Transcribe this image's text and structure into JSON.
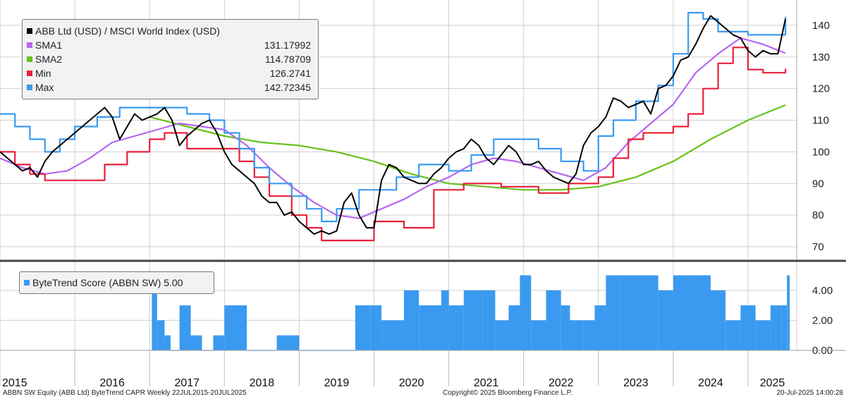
{
  "footer": {
    "left": "ABBN SW Equity (ABB Ltd) ByteTrend CAPR  Weekly 22JUL2015-20JUL2025",
    "center": "Copyright© 2025 Bloomberg Finance L.P.",
    "right": "20-Jul-2025 14:00:28"
  },
  "colors": {
    "price": "#000000",
    "sma1": "#b866f0",
    "sma2": "#66c21c",
    "min": "#e8203a",
    "max": "#3a9af0",
    "score": "#3a9af0",
    "grid": "#cfcfcf",
    "divider": "#444444"
  },
  "chart_data": [
    {
      "type": "line",
      "legend_title": "ABB Ltd (USD) / MSCI World Index (USD)",
      "legend_placement": "top-left",
      "ylim": [
        66,
        148
      ],
      "yticks": [
        70,
        80,
        90,
        100,
        110,
        120,
        130,
        140
      ],
      "xlim": [
        2015.0,
        2025.65
      ],
      "grid": true,
      "series": [
        {
          "name": "ABB Ltd (USD) / MSCI World Index (USD)",
          "color": "black",
          "x": [
            2015.0,
            2015.1,
            2015.2,
            2015.3,
            2015.4,
            2015.5,
            2015.6,
            2015.7,
            2015.8,
            2015.9,
            2016.0,
            2016.1,
            2016.2,
            2016.3,
            2016.4,
            2016.5,
            2016.6,
            2016.7,
            2016.8,
            2016.9,
            2017.0,
            2017.1,
            2017.2,
            2017.3,
            2017.4,
            2017.5,
            2017.6,
            2017.7,
            2017.8,
            2017.9,
            2018.0,
            2018.1,
            2018.2,
            2018.3,
            2018.4,
            2018.5,
            2018.6,
            2018.7,
            2018.8,
            2018.9,
            2019.0,
            2019.1,
            2019.2,
            2019.3,
            2019.4,
            2019.5,
            2019.6,
            2019.7,
            2019.8,
            2019.9,
            2020.0,
            2020.1,
            2020.2,
            2020.3,
            2020.4,
            2020.5,
            2020.6,
            2020.7,
            2020.8,
            2020.9,
            2021.0,
            2021.1,
            2021.2,
            2021.3,
            2021.4,
            2021.5,
            2021.6,
            2021.7,
            2021.8,
            2021.9,
            2022.0,
            2022.1,
            2022.2,
            2022.3,
            2022.4,
            2022.5,
            2022.6,
            2022.7,
            2022.8,
            2022.9,
            2023.0,
            2023.1,
            2023.2,
            2023.3,
            2023.4,
            2023.5,
            2023.6,
            2023.7,
            2023.8,
            2023.9,
            2024.0,
            2024.1,
            2024.2,
            2024.3,
            2024.4,
            2024.5,
            2024.6,
            2024.7,
            2024.8,
            2024.9,
            2025.0,
            2025.1,
            2025.2,
            2025.3,
            2025.4,
            2025.5
          ],
          "values": [
            100,
            98,
            96,
            94,
            95,
            92,
            97,
            100,
            102,
            104,
            106,
            108,
            110,
            112,
            114,
            111,
            104,
            108,
            112,
            110,
            111,
            112,
            114,
            110,
            102,
            105,
            107,
            109,
            110,
            106,
            100,
            96,
            94,
            92,
            90,
            86,
            84,
            84,
            80,
            81,
            78,
            76,
            74,
            75,
            74,
            75,
            84,
            87,
            80,
            76,
            76,
            91,
            96,
            95,
            92,
            91,
            90,
            90,
            93,
            95,
            98,
            100,
            101,
            104,
            102,
            98,
            96,
            99,
            102,
            100,
            96,
            96,
            97,
            94,
            92,
            91,
            90,
            93,
            102,
            106,
            108,
            111,
            117,
            116,
            114,
            115,
            116,
            112,
            120,
            121,
            124,
            129,
            130,
            134,
            139,
            143,
            141,
            139,
            137,
            136,
            132,
            130,
            132,
            131,
            131,
            142
          ]
        },
        {
          "name": "SMA1",
          "value": "131.17992",
          "color": "#b866f0",
          "x": [
            2015.0,
            2015.3,
            2015.6,
            2015.9,
            2016.2,
            2016.5,
            2016.8,
            2017.1,
            2017.4,
            2017.7,
            2018.0,
            2018.3,
            2018.6,
            2018.9,
            2019.2,
            2019.5,
            2019.8,
            2020.1,
            2020.4,
            2020.7,
            2021.0,
            2021.3,
            2021.6,
            2021.9,
            2022.2,
            2022.5,
            2022.8,
            2023.1,
            2023.4,
            2023.7,
            2024.0,
            2024.3,
            2024.6,
            2024.9,
            2025.2,
            2025.5
          ],
          "values": [
            98,
            95,
            93,
            94,
            98,
            103,
            105,
            107,
            109,
            108,
            107,
            102,
            95,
            89,
            84,
            80,
            79,
            82,
            85,
            89,
            92,
            96,
            98,
            97,
            95,
            93,
            91,
            95,
            103,
            109,
            115,
            125,
            131,
            136,
            134,
            131.18
          ]
        },
        {
          "name": "SMA2",
          "value": "114.78709",
          "color": "#66c21c",
          "x": [
            2017.0,
            2017.5,
            2018.0,
            2018.5,
            2019.0,
            2019.5,
            2020.0,
            2020.5,
            2021.0,
            2021.5,
            2022.0,
            2022.5,
            2023.0,
            2023.5,
            2024.0,
            2024.5,
            2025.0,
            2025.5
          ],
          "values": [
            111,
            108,
            105,
            103,
            102,
            100,
            97,
            93,
            90,
            89,
            88,
            88,
            89,
            92,
            97,
            104,
            110,
            114.79
          ]
        },
        {
          "name": "Min",
          "value": "126.2741",
          "color": "#e8203a",
          "x": [
            2015.0,
            2015.2,
            2015.4,
            2015.6,
            2016.0,
            2016.4,
            2016.7,
            2017.0,
            2017.2,
            2017.5,
            2017.7,
            2018.0,
            2018.2,
            2018.4,
            2018.6,
            2018.9,
            2019.1,
            2019.3,
            2019.6,
            2019.8,
            2020.0,
            2020.2,
            2020.4,
            2020.6,
            2020.8,
            2021.0,
            2021.2,
            2021.5,
            2021.7,
            2022.0,
            2022.2,
            2022.4,
            2022.6,
            2022.8,
            2023.0,
            2023.2,
            2023.4,
            2023.6,
            2023.8,
            2024.0,
            2024.2,
            2024.4,
            2024.6,
            2024.8,
            2025.0,
            2025.2,
            2025.5
          ],
          "values": [
            100,
            96,
            93,
            91,
            91,
            96,
            100,
            104,
            106,
            101,
            101,
            101,
            97,
            92,
            86,
            80,
            76,
            72,
            72,
            72,
            78,
            78,
            76,
            76,
            88,
            88,
            90,
            90,
            89,
            89,
            87,
            87,
            90,
            90,
            92,
            98,
            104,
            106,
            106,
            108,
            112,
            120,
            128,
            133,
            126,
            125,
            126.27
          ]
        },
        {
          "name": "Max",
          "value": "142.72345",
          "color": "#3a9af0",
          "x": [
            2015.0,
            2015.2,
            2015.4,
            2015.6,
            2015.8,
            2016.0,
            2016.3,
            2016.6,
            2016.9,
            2017.2,
            2017.5,
            2017.8,
            2018.0,
            2018.2,
            2018.4,
            2018.6,
            2018.9,
            2019.1,
            2019.3,
            2019.5,
            2019.8,
            2020.0,
            2020.3,
            2020.6,
            2020.9,
            2021.0,
            2021.3,
            2021.6,
            2021.9,
            2022.2,
            2022.5,
            2022.8,
            2023.0,
            2023.2,
            2023.5,
            2023.8,
            2024.0,
            2024.2,
            2024.4,
            2024.6,
            2024.8,
            2025.0,
            2025.2,
            2025.5
          ],
          "values": [
            112,
            108,
            104,
            100,
            104,
            108,
            111,
            114,
            114,
            114,
            112,
            110,
            106,
            101,
            95,
            90,
            86,
            82,
            78,
            82,
            88,
            88,
            92,
            96,
            96,
            94,
            99,
            104,
            104,
            101,
            97,
            94,
            105,
            110,
            116,
            121,
            131,
            144,
            142,
            138,
            138,
            137,
            137,
            142.72
          ]
        }
      ]
    },
    {
      "type": "bar",
      "legend_title": "ByteTrend Score (ABBN SW) 5.00",
      "legend_placement": "top-left",
      "ylim": [
        0,
        5.4
      ],
      "yticks": [
        0.0,
        2.0,
        4.0
      ],
      "ytick_labels": [
        "0.00",
        "2.00",
        "4.00"
      ],
      "series": [
        {
          "name": "ByteTrend Score (ABBN SW)",
          "value": "5.00",
          "x": [
            2017.03,
            2017.1,
            2017.2,
            2017.28,
            2017.4,
            2017.55,
            2017.7,
            2017.85,
            2018.0,
            2018.3,
            2018.7,
            2019.0,
            2019.4,
            2019.55,
            2019.75,
            2019.95,
            2020.1,
            2020.4,
            2020.6,
            2020.9,
            2021.0,
            2021.2,
            2021.45,
            2021.62,
            2021.8,
            2021.95,
            2022.1,
            2022.3,
            2022.5,
            2022.62,
            2022.8,
            2022.95,
            2023.1,
            2023.3,
            2023.6,
            2023.8,
            2024.0,
            2024.25,
            2024.5,
            2024.7,
            2024.9,
            2025.1,
            2025.3,
            2025.45,
            2025.52
          ],
          "values": [
            4,
            2,
            1,
            0,
            3,
            1,
            0,
            1,
            3,
            0,
            1,
            0,
            0,
            0,
            3,
            3,
            2,
            4,
            3,
            4,
            3,
            4,
            4,
            2,
            3,
            5,
            2,
            4,
            3,
            2,
            2,
            3,
            5,
            5,
            5,
            4,
            5,
            5,
            4,
            2,
            3,
            2,
            3,
            3,
            5
          ]
        }
      ]
    }
  ],
  "x_axis": {
    "years": [
      "2015",
      "2016",
      "2017",
      "2018",
      "2019",
      "2020",
      "2021",
      "2022",
      "2023",
      "2024",
      "2025"
    ]
  }
}
